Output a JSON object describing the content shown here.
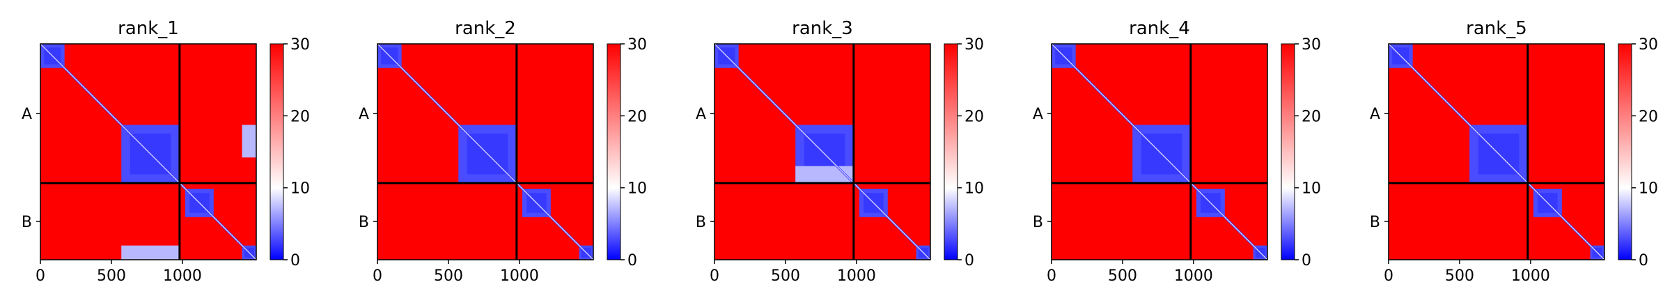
{
  "chart_data": [
    {
      "type": "heatmap",
      "title": "rank_1",
      "x_ticks": [
        0,
        500,
        1000
      ],
      "x_tick_labels": [
        "0",
        "500",
        "1000"
      ],
      "xlim": [
        0,
        1520
      ],
      "ylim": [
        0,
        1520
      ],
      "chain_labels": [
        "A",
        "B"
      ],
      "chain_boundary": 980,
      "colorbar": {
        "min": 0,
        "max": 30,
        "ticks": [
          0,
          10,
          20,
          30
        ],
        "tick_labels": [
          "0",
          "10",
          "20",
          "30"
        ],
        "colormap": [
          "#0000ff",
          "#ffffff",
          "#ff0000"
        ]
      },
      "low_pae_blocks": [
        {
          "x": [
            0,
            170
          ],
          "y": [
            0,
            170
          ]
        },
        {
          "x": [
            570,
            980
          ],
          "y": [
            570,
            980
          ]
        },
        {
          "x": [
            1020,
            1220
          ],
          "y": [
            1020,
            1220
          ]
        },
        {
          "x": [
            1420,
            1520
          ],
          "y": [
            1420,
            1520
          ]
        }
      ],
      "mixed_blocks": [
        {
          "x": [
            1420,
            1520
          ],
          "y": [
            570,
            800
          ]
        },
        {
          "x": [
            570,
            980
          ],
          "y": [
            1420,
            1520
          ]
        }
      ]
    },
    {
      "type": "heatmap",
      "title": "rank_2",
      "x_ticks": [
        0,
        500,
        1000
      ],
      "x_tick_labels": [
        "0",
        "500",
        "1000"
      ],
      "xlim": [
        0,
        1520
      ],
      "ylim": [
        0,
        1520
      ],
      "chain_labels": [
        "A",
        "B"
      ],
      "chain_boundary": 980,
      "colorbar": {
        "min": 0,
        "max": 30,
        "ticks": [
          0,
          10,
          20,
          30
        ],
        "tick_labels": [
          "0",
          "10",
          "20",
          "30"
        ],
        "colormap": [
          "#0000ff",
          "#ffffff",
          "#ff0000"
        ]
      },
      "low_pae_blocks": [
        {
          "x": [
            0,
            170
          ],
          "y": [
            0,
            170
          ]
        },
        {
          "x": [
            570,
            980
          ],
          "y": [
            570,
            980
          ]
        },
        {
          "x": [
            1020,
            1220
          ],
          "y": [
            1020,
            1220
          ]
        },
        {
          "x": [
            1420,
            1520
          ],
          "y": [
            1420,
            1520
          ]
        }
      ],
      "mixed_blocks": []
    },
    {
      "type": "heatmap",
      "title": "rank_3",
      "x_ticks": [
        0,
        500,
        1000
      ],
      "x_tick_labels": [
        "0",
        "500",
        "1000"
      ],
      "xlim": [
        0,
        1520
      ],
      "ylim": [
        0,
        1520
      ],
      "chain_labels": [
        "A",
        "B"
      ],
      "chain_boundary": 980,
      "colorbar": {
        "min": 0,
        "max": 30,
        "ticks": [
          0,
          10,
          20,
          30
        ],
        "tick_labels": [
          "0",
          "10",
          "20",
          "30"
        ],
        "colormap": [
          "#0000ff",
          "#ffffff",
          "#ff0000"
        ]
      },
      "low_pae_blocks": [
        {
          "x": [
            0,
            170
          ],
          "y": [
            0,
            170
          ]
        },
        {
          "x": [
            570,
            980
          ],
          "y": [
            570,
            980
          ]
        },
        {
          "x": [
            1020,
            1220
          ],
          "y": [
            1020,
            1220
          ]
        },
        {
          "x": [
            1420,
            1520
          ],
          "y": [
            1420,
            1520
          ]
        }
      ],
      "mixed_blocks": [
        {
          "x": [
            570,
            980
          ],
          "y": [
            860,
            980
          ]
        }
      ]
    },
    {
      "type": "heatmap",
      "title": "rank_4",
      "x_ticks": [
        0,
        500,
        1000
      ],
      "x_tick_labels": [
        "0",
        "500",
        "1000"
      ],
      "xlim": [
        0,
        1520
      ],
      "ylim": [
        0,
        1520
      ],
      "chain_labels": [
        "A",
        "B"
      ],
      "chain_boundary": 980,
      "colorbar": {
        "min": 0,
        "max": 30,
        "ticks": [
          0,
          10,
          20,
          30
        ],
        "tick_labels": [
          "0",
          "10",
          "20",
          "30"
        ],
        "colormap": [
          "#0000ff",
          "#ffffff",
          "#ff0000"
        ]
      },
      "low_pae_blocks": [
        {
          "x": [
            0,
            170
          ],
          "y": [
            0,
            170
          ]
        },
        {
          "x": [
            570,
            980
          ],
          "y": [
            570,
            980
          ]
        },
        {
          "x": [
            1020,
            1220
          ],
          "y": [
            1020,
            1220
          ]
        },
        {
          "x": [
            1420,
            1520
          ],
          "y": [
            1420,
            1520
          ]
        }
      ],
      "mixed_blocks": []
    },
    {
      "type": "heatmap",
      "title": "rank_5",
      "x_ticks": [
        0,
        500,
        1000
      ],
      "x_tick_labels": [
        "0",
        "500",
        "1000"
      ],
      "xlim": [
        0,
        1520
      ],
      "ylim": [
        0,
        1520
      ],
      "chain_labels": [
        "A",
        "B"
      ],
      "chain_boundary": 980,
      "colorbar": {
        "min": 0,
        "max": 30,
        "ticks": [
          0,
          10,
          20,
          30
        ],
        "tick_labels": [
          "0",
          "10",
          "20",
          "30"
        ],
        "colormap": [
          "#0000ff",
          "#ffffff",
          "#ff0000"
        ]
      },
      "low_pae_blocks": [
        {
          "x": [
            0,
            170
          ],
          "y": [
            0,
            170
          ]
        },
        {
          "x": [
            570,
            980
          ],
          "y": [
            570,
            980
          ]
        },
        {
          "x": [
            1020,
            1220
          ],
          "y": [
            1020,
            1220
          ]
        },
        {
          "x": [
            1420,
            1520
          ],
          "y": [
            1420,
            1520
          ]
        }
      ],
      "mixed_blocks": []
    }
  ]
}
